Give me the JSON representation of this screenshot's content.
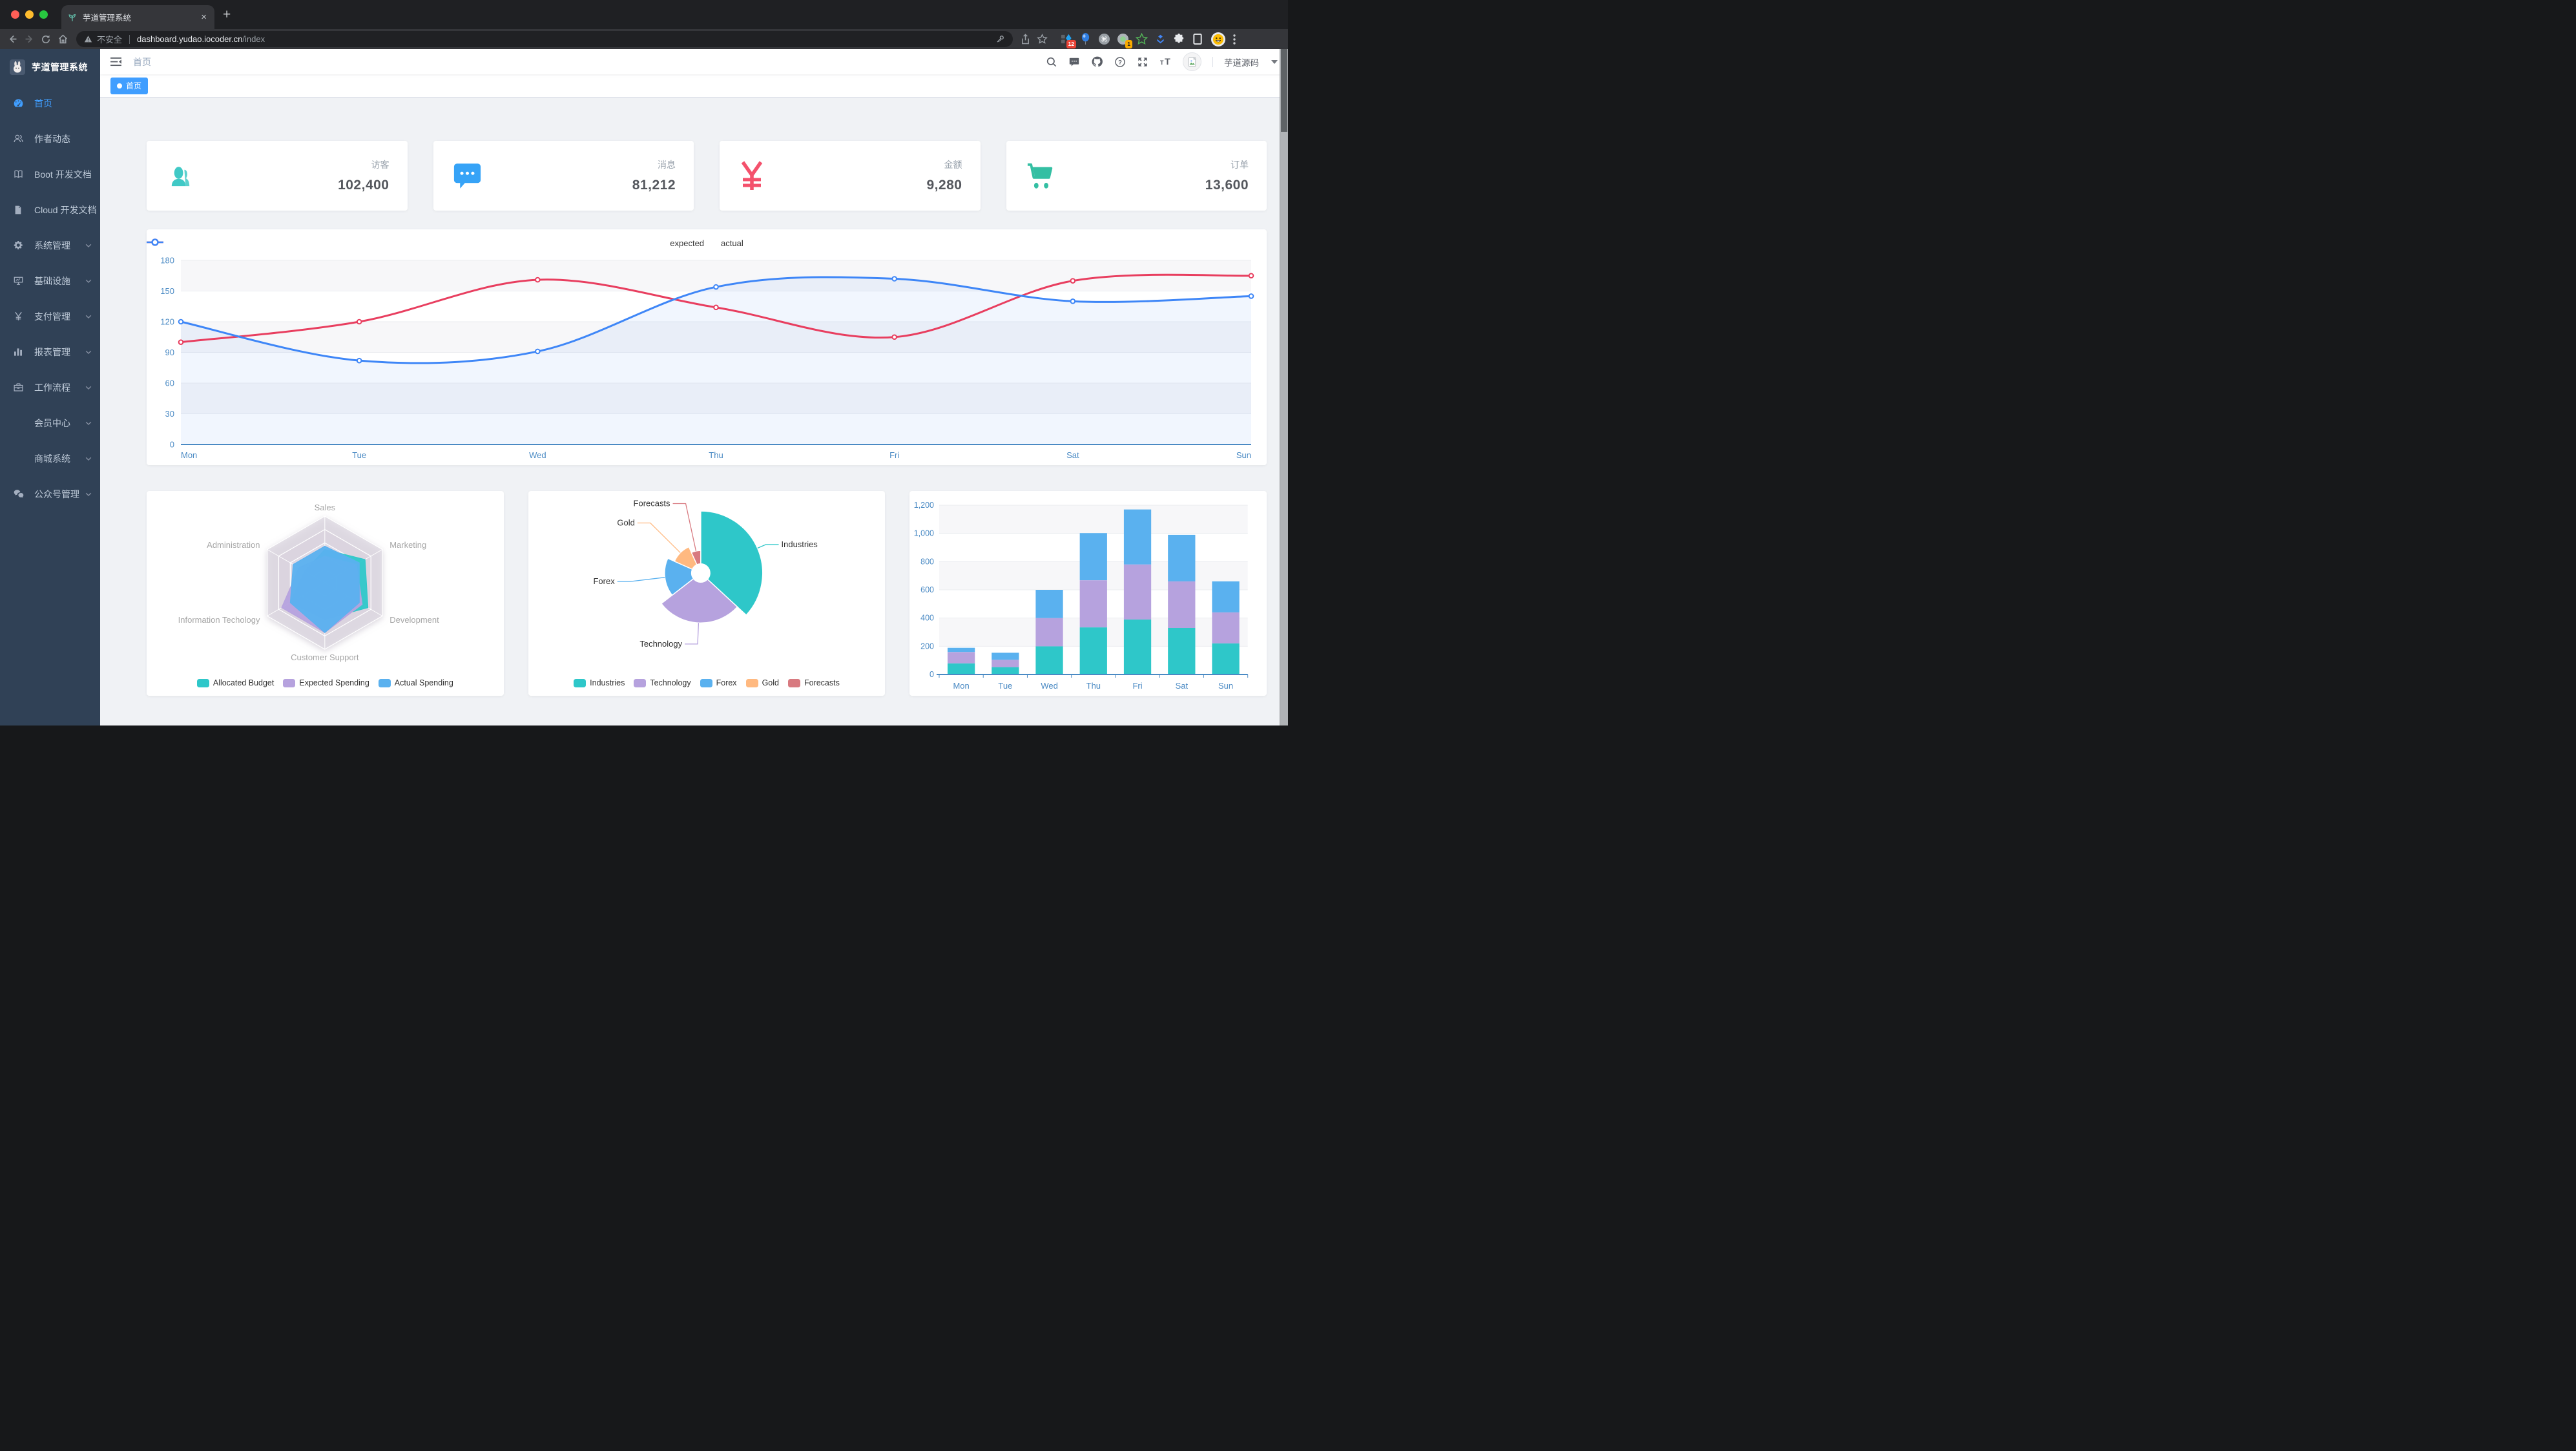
{
  "browser": {
    "tab": {
      "title": "芋道管理系统",
      "favicon": "sprout-icon",
      "close": "×"
    },
    "new_tab": "+",
    "toolbar_icons": [
      "back-icon",
      "forward-icon",
      "reload-icon",
      "home-icon"
    ],
    "address": {
      "security_icon": "warning-icon",
      "security_label": "不安全",
      "host": "dashboard.yudao.iocoder.cn",
      "path": "/index",
      "key_icon": "key-icon"
    },
    "toolbar_right": [
      "share-icon",
      "bookmark-star-icon"
    ],
    "extensions": [
      {
        "icon": "tampermonkey-icon",
        "badge": "12"
      },
      {
        "icon": "balloon-icon"
      },
      {
        "icon": "command-icon"
      },
      {
        "icon": "recorder-icon",
        "badge": "1"
      },
      {
        "icon": "star-outline-icon"
      },
      {
        "icon": "chevrons-icon"
      },
      {
        "icon": "puzzle-icon"
      },
      {
        "icon": "reading-list-icon"
      }
    ]
  },
  "sidebar": {
    "logo_title": "芋道管理系统",
    "items": [
      {
        "label": "首页",
        "icon": "dashboard-icon",
        "active": true
      },
      {
        "label": "作者动态",
        "icon": "peoples-icon"
      },
      {
        "label": "Boot 开发文档",
        "icon": "book-icon"
      },
      {
        "label": "Cloud 开发文档",
        "icon": "document-icon"
      },
      {
        "label": "系统管理",
        "icon": "gear-icon",
        "arrow": true
      },
      {
        "label": "基础设施",
        "icon": "monitor-icon",
        "arrow": true
      },
      {
        "label": "支付管理",
        "icon": "yen-icon",
        "arrow": true
      },
      {
        "label": "报表管理",
        "icon": "chart-icon",
        "arrow": true
      },
      {
        "label": "工作流程",
        "icon": "briefcase-icon",
        "arrow": true
      },
      {
        "label": "会员中心",
        "icon": null,
        "arrow": true
      },
      {
        "label": "商城系统",
        "icon": null,
        "arrow": true
      },
      {
        "label": "公众号管理",
        "icon": "wechat-icon",
        "arrow": true
      }
    ]
  },
  "navbar": {
    "breadcrumb": "首页",
    "icons": [
      "search-icon",
      "message-icon",
      "github-icon",
      "help-icon",
      "fullscreen-icon",
      "font-size-icon"
    ],
    "username": "芋道源码"
  },
  "tags_bar": {
    "tags": [
      {
        "label": "首页",
        "active": true
      }
    ]
  },
  "stat_cards": [
    {
      "key": "visitors",
      "label": "访客",
      "value": "102,400",
      "icon": "stat-peoples-icon",
      "color": "#40c9c6"
    },
    {
      "key": "messages",
      "label": "消息",
      "value": "81,212",
      "icon": "stat-message-icon",
      "color": "#36a3f7"
    },
    {
      "key": "amount",
      "label": "金额",
      "value": "9,280",
      "icon": "stat-money-icon",
      "color": "#f4516c"
    },
    {
      "key": "orders",
      "label": "订单",
      "value": "13,600",
      "icon": "stat-cart-icon",
      "color": "#34bfa3"
    }
  ],
  "chart_data": [
    {
      "id": "weekly-line",
      "type": "line",
      "x": [
        "Mon",
        "Tue",
        "Wed",
        "Thu",
        "Fri",
        "Sat",
        "Sun"
      ],
      "series": [
        {
          "name": "expected",
          "color": "#e83e5f",
          "values": [
            100,
            120,
            161,
            134,
            105,
            160,
            165
          ]
        },
        {
          "name": "actual",
          "color": "#3e86f7",
          "values": [
            120,
            82,
            91,
            154,
            162,
            140,
            145
          ]
        }
      ],
      "ylim": [
        0,
        180
      ],
      "yticks": [
        0,
        30,
        60,
        90,
        120,
        150,
        180
      ],
      "legend_position": "top",
      "grid": true,
      "axis_label_color": "#4a8ac4"
    },
    {
      "id": "budget-radar",
      "type": "radar",
      "indicators": [
        {
          "name": "Sales",
          "max": 10000
        },
        {
          "name": "Administration",
          "max": 20000
        },
        {
          "name": "Information Techology",
          "max": 20000
        },
        {
          "name": "Customer Support",
          "max": 20000
        },
        {
          "name": "Development",
          "max": 20000
        },
        {
          "name": "Marketing",
          "max": 20000
        }
      ],
      "series": [
        {
          "name": "Allocated Budget",
          "color": "#2ec7c9",
          "values": [
            5000,
            7000,
            12000,
            11000,
            15000,
            14000
          ]
        },
        {
          "name": "Expected Spending",
          "color": "#b6a2de",
          "values": [
            4000,
            9000,
            15000,
            15000,
            13000,
            11000
          ]
        },
        {
          "name": "Actual Spending",
          "color": "#5ab1ef",
          "values": [
            5500,
            11000,
            12000,
            15000,
            12000,
            12000
          ]
        }
      ],
      "legend_position": "bottom"
    },
    {
      "id": "category-pie",
      "type": "pie",
      "rose": true,
      "slices": [
        {
          "name": "Industries",
          "value": 320,
          "color": "#2ec7c9"
        },
        {
          "name": "Technology",
          "value": 240,
          "color": "#b6a2de"
        },
        {
          "name": "Forex",
          "value": 149,
          "color": "#5ab1ef"
        },
        {
          "name": "Gold",
          "value": 100,
          "color": "#ffb980"
        },
        {
          "name": "Forecasts",
          "value": 59,
          "color": "#d87a80"
        }
      ],
      "legend_position": "bottom"
    },
    {
      "id": "weekly-stacked-bar",
      "type": "bar",
      "stacked": true,
      "x": [
        "Mon",
        "Tue",
        "Wed",
        "Thu",
        "Fri",
        "Sat",
        "Sun"
      ],
      "series": [
        {
          "color": "#2ec7c9",
          "values": [
            79,
            52,
            200,
            334,
            390,
            330,
            220
          ]
        },
        {
          "color": "#b6a2de",
          "values": [
            80,
            52,
            200,
            334,
            390,
            330,
            220
          ]
        },
        {
          "color": "#5ab1ef",
          "values": [
            30,
            50,
            200,
            334,
            390,
            330,
            220
          ]
        }
      ],
      "ylim": [
        0,
        1200
      ],
      "yticks": [
        "0",
        "200",
        "400",
        "600",
        "800",
        "1,000",
        "1,200"
      ],
      "grid": true,
      "axis_label_color": "#4a8ac4"
    }
  ]
}
